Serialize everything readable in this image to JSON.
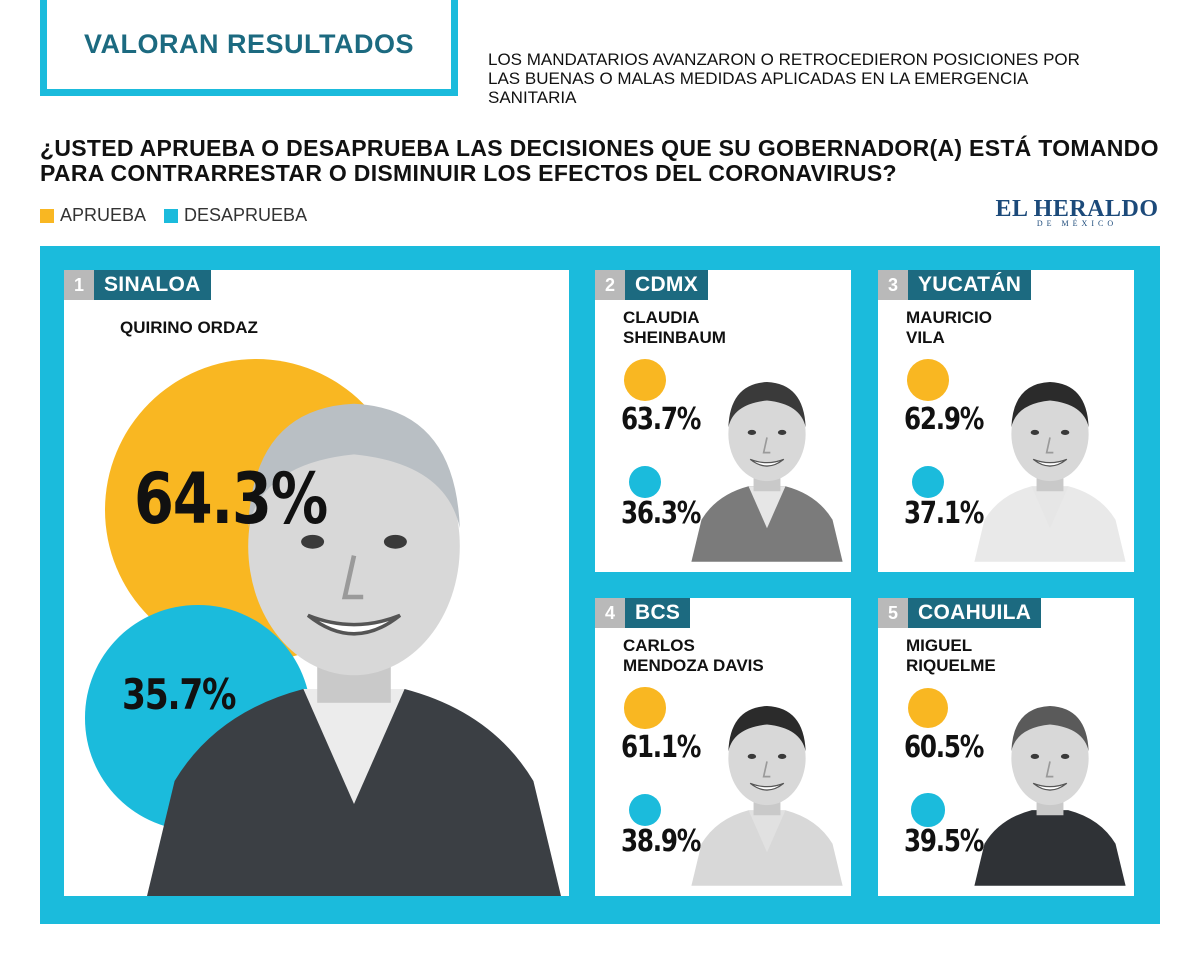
{
  "header": {
    "title": "VALORAN RESULTADOS",
    "subtitle": "LOS MANDATARIOS AVANZARON O RETROCEDIERON POSICIONES POR LAS BUENAS O MALAS MEDIDAS APLICADAS EN LA EMERGENCIA SANITARIA",
    "question": "¿USTED APRUEBA O DESAPRUEBA LAS DECISIONES QUE SU GOBERNADOR(A) ESTÁ TOMANDO PARA CONTRARRESTAR O DISMINUIR LOS EFECTOS DEL CORONAVIRUS?"
  },
  "brand": {
    "name": "EL HERALDO",
    "sub": "DE MÉXICO"
  },
  "colors": {
    "approve": "#f9b722",
    "disapprove": "#1bbbdc",
    "state_tag": "#1c6a80",
    "rank_tag": "#b9b9b9"
  },
  "chart_data": {
    "type": "bar",
    "categories": [
      "SINALOA",
      "CDMX",
      "YUCATÁN",
      "BCS",
      "COAHUILA"
    ],
    "ranks": [
      "1",
      "2",
      "3",
      "4",
      "5"
    ],
    "governors": [
      [
        "QUIRINO ORDAZ"
      ],
      [
        "CLAUDIA",
        "SHEINBAUM"
      ],
      [
        "MAURICIO",
        "VILA"
      ],
      [
        "CARLOS",
        "MENDOZA DAVIS"
      ],
      [
        "MIGUEL",
        "RIQUELME"
      ]
    ],
    "series": [
      {
        "name": "APRUEBA",
        "values": [
          64.3,
          63.7,
          62.9,
          61.1,
          60.5
        ],
        "labels": [
          "64.3%",
          "63.7%",
          "62.9%",
          "61.1%",
          "60.5%"
        ]
      },
      {
        "name": "DESAPRUEBA",
        "values": [
          35.7,
          36.3,
          37.1,
          38.9,
          39.5
        ],
        "labels": [
          "35.7%",
          "36.3%",
          "37.1%",
          "38.9%",
          "39.5%"
        ]
      }
    ],
    "ylim": [
      0,
      100
    ]
  }
}
